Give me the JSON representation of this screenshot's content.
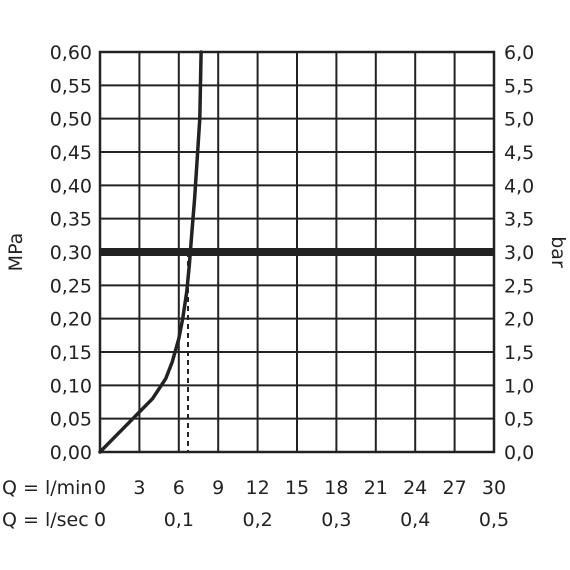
{
  "chart_data": {
    "type": "line",
    "title": "",
    "left_axis": {
      "label": "MPa",
      "ylim": [
        0,
        0.6
      ],
      "ticks": [
        "0,00",
        "0,05",
        "0,10",
        "0,15",
        "0,20",
        "0,25",
        "0,30",
        "0,35",
        "0,40",
        "0,45",
        "0,50",
        "0,55",
        "0,60"
      ]
    },
    "right_axis": {
      "label": "bar",
      "ylim": [
        0,
        6
      ],
      "ticks": [
        "0,0",
        "0,5",
        "1,0",
        "1,5",
        "2,0",
        "2,5",
        "3,0",
        "3,5",
        "4,0",
        "4,5",
        "5,0",
        "5,5",
        "6,0"
      ]
    },
    "x_axis_lmin": {
      "label": "Q = l/min",
      "xlim": [
        0,
        30
      ],
      "ticks": [
        "0",
        "3",
        "6",
        "9",
        "12",
        "15",
        "18",
        "21",
        "24",
        "27",
        "30"
      ]
    },
    "x_axis_lsec": {
      "label": "Q = l/sec",
      "xlim": [
        0,
        0.5
      ],
      "ticks": [
        "0",
        "0,1",
        "0,2",
        "0,3",
        "0,4",
        "0,5"
      ]
    },
    "grid": true,
    "series": [
      {
        "x": [
          0,
          1,
          2,
          3,
          4,
          5,
          5.5,
          6,
          6.3,
          6.6,
          6.8,
          7.0,
          7.2,
          7.4,
          7.6,
          7.7
        ],
        "y": [
          0,
          0.02,
          0.04,
          0.06,
          0.08,
          0.11,
          0.135,
          0.17,
          0.2,
          0.24,
          0.28,
          0.33,
          0.38,
          0.44,
          0.5,
          0.6
        ]
      }
    ],
    "reference_line": {
      "y": 0.3
    },
    "reference_drop": {
      "x": 6.7,
      "y": 0.3
    }
  },
  "colors": {
    "ink": "#222222",
    "background": "#ffffff"
  }
}
